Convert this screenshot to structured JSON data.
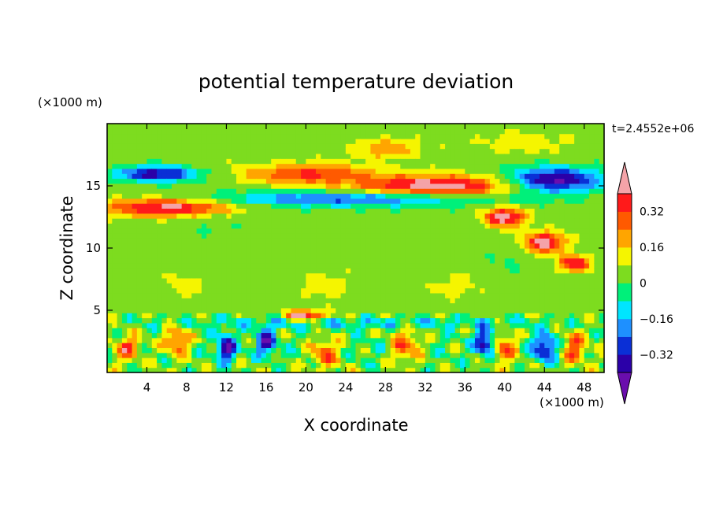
{
  "chart_data": {
    "type": "heatmap",
    "title": "potential temperature deviation",
    "xlabel": "X coordinate",
    "ylabel": "Z coordinate",
    "x_unit": "(×1000 m)",
    "y_unit": "(×1000 m)",
    "time_label": "t=2.4552e+06",
    "xlim": [
      0,
      50
    ],
    "ylim": [
      0,
      20
    ],
    "x_ticks": [
      4,
      8,
      12,
      16,
      20,
      24,
      28,
      32,
      36,
      40,
      44,
      48
    ],
    "y_ticks": [
      5,
      10,
      15
    ],
    "colorbar": {
      "levels": [
        -0.48,
        -0.4,
        -0.32,
        -0.24,
        -0.16,
        -0.08,
        0,
        0.08,
        0.16,
        0.24,
        0.32,
        0.4,
        0.48
      ],
      "tick_labels": [
        "0.32",
        "0.16",
        "0",
        "−0.16",
        "−0.32"
      ],
      "tick_values": [
        0.32,
        0.16,
        0,
        -0.16,
        -0.32
      ],
      "colors": [
        "#6a0dad",
        "#2b00a8",
        "#0a2fd6",
        "#1e90ff",
        "#00e5ff",
        "#00f07a",
        "#7ddc1f",
        "#f5f500",
        "#ffa500",
        "#ff5a00",
        "#ff1a1a",
        "#f4a3a8"
      ],
      "extend": "both"
    },
    "background_value": 0.04,
    "features": [
      {
        "name": "lower-band",
        "cx": 25,
        "cz": 2,
        "rx": 26,
        "rz": 1.8,
        "value": -0.05
      },
      {
        "name": "lower-warm-1",
        "cx": 2,
        "cz": 2,
        "rx": 1.5,
        "rz": 1.2,
        "value": 0.3
      },
      {
        "name": "lower-warm-2",
        "cx": 7,
        "cz": 2.5,
        "rx": 1.5,
        "rz": 1.4,
        "value": 0.3
      },
      {
        "name": "lower-cold-1",
        "cx": 12,
        "cz": 2,
        "rx": 1.2,
        "rz": 1.4,
        "value": -0.4
      },
      {
        "name": "lower-cold-2",
        "cx": 16,
        "cz": 2.5,
        "rx": 1.2,
        "rz": 1.2,
        "value": -0.4
      },
      {
        "name": "lower-warm-3",
        "cx": 22,
        "cz": 1.6,
        "rx": 2,
        "rz": 1.5,
        "value": 0.3
      },
      {
        "name": "lower-warm-4",
        "cx": 30,
        "cz": 2.2,
        "rx": 2,
        "rz": 1.6,
        "value": 0.3
      },
      {
        "name": "lower-cold-3",
        "cx": 38,
        "cz": 2.5,
        "rx": 1.2,
        "rz": 1.4,
        "value": -0.4
      },
      {
        "name": "lower-warm-5",
        "cx": 40,
        "cz": 2,
        "rx": 1.5,
        "rz": 1.4,
        "value": 0.3
      },
      {
        "name": "lower-cold-4",
        "cx": 44,
        "cz": 2,
        "rx": 1.5,
        "rz": 1.4,
        "value": -0.4
      },
      {
        "name": "lower-warm-6",
        "cx": 47,
        "cz": 2,
        "rx": 1.5,
        "rz": 1.4,
        "value": 0.3
      },
      {
        "name": "low-cyan-band",
        "cx": 25,
        "cz": 4,
        "rx": 26,
        "rz": 0.6,
        "value": -0.14
      },
      {
        "name": "warm-patch-center",
        "cx": 20,
        "cz": 4.6,
        "rx": 2.5,
        "rz": 0.5,
        "value": 0.45
      },
      {
        "name": "mid-green-1",
        "cx": 8,
        "cz": 7,
        "rx": 3,
        "rz": 1.3,
        "value": 0.09
      },
      {
        "name": "mid-green-2",
        "cx": 22,
        "cz": 7,
        "rx": 3,
        "rz": 1.5,
        "value": 0.09
      },
      {
        "name": "mid-green-3",
        "cx": 35,
        "cz": 7,
        "rx": 3,
        "rz": 1.3,
        "value": 0.09
      },
      {
        "name": "mid-cyan-1",
        "cx": 40,
        "cz": 9,
        "rx": 3,
        "rz": 2,
        "value": -0.03
      },
      {
        "name": "mid-cyan-2",
        "cx": 10,
        "cz": 12,
        "rx": 6,
        "rz": 1.5,
        "value": -0.03
      },
      {
        "name": "upper-cold-left",
        "cx": 5,
        "cz": 16,
        "rx": 5,
        "rz": 0.8,
        "value": -0.42
      },
      {
        "name": "upper-warm-left",
        "cx": 6,
        "cz": 13.3,
        "rx": 8,
        "rz": 0.9,
        "value": 0.42
      },
      {
        "name": "upper-cold-band",
        "cx": 25,
        "cz": 14,
        "rx": 18,
        "rz": 0.8,
        "value": -0.3
      },
      {
        "name": "upper-warm-center",
        "cx": 20,
        "cz": 16,
        "rx": 8,
        "rz": 1,
        "value": 0.3
      },
      {
        "name": "upper-warm-right",
        "cx": 33,
        "cz": 15,
        "rx": 10,
        "rz": 1.1,
        "value": 0.45
      },
      {
        "name": "upper-cold-right",
        "cx": 45,
        "cz": 15.5,
        "rx": 6,
        "rz": 1.2,
        "value": -0.48
      },
      {
        "name": "top-warm",
        "cx": 28,
        "cz": 18,
        "rx": 4,
        "rz": 1,
        "value": 0.2
      },
      {
        "name": "top-green",
        "cx": 42,
        "cz": 18.5,
        "rx": 6,
        "rz": 1.2,
        "value": 0.09
      },
      {
        "name": "diag-warm-1",
        "cx": 40,
        "cz": 12.5,
        "rx": 2.5,
        "rz": 1,
        "value": 0.45
      },
      {
        "name": "diag-warm-2",
        "cx": 44,
        "cz": 10.5,
        "rx": 2.5,
        "rz": 1,
        "value": 0.45
      },
      {
        "name": "diag-warm-3",
        "cx": 47,
        "cz": 8.8,
        "rx": 2,
        "rz": 0.8,
        "value": 0.4
      }
    ]
  }
}
